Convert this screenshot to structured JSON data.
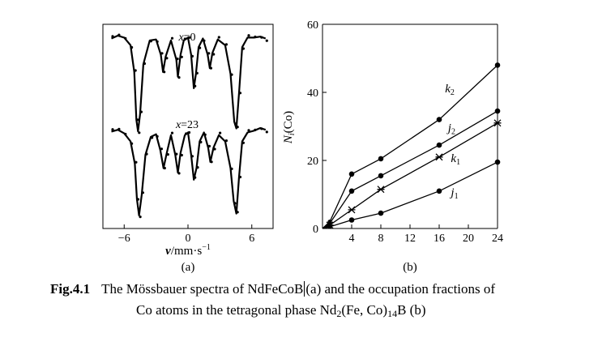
{
  "chart_data": [
    {
      "panel": "a",
      "type": "line",
      "panel_label": "(a)",
      "xlabel_main": "v",
      "xlabel_unit": "/mm·s",
      "xlabel_sup": "−1",
      "xlim": [
        -8,
        8
      ],
      "xticks": [
        -6,
        0,
        6
      ],
      "xtick_labels": [
        "−6",
        "0",
        "6"
      ],
      "series": [
        {
          "name": "x=0",
          "label_main": "x",
          "label_rest": "=0",
          "x": [
            -7.2,
            -6.6,
            -6.0,
            -5.4,
            -5.05,
            -4.85,
            -4.7,
            -4.5,
            -4.2,
            -3.6,
            -3.0,
            -2.55,
            -2.35,
            -2.1,
            -1.6,
            -1.1,
            -0.95,
            -0.7,
            -0.4,
            0.0,
            0.3,
            0.55,
            0.75,
            1.0,
            1.4,
            1.85,
            2.05,
            2.3,
            2.8,
            3.5,
            4.0,
            4.35,
            4.55,
            4.8,
            5.1,
            5.6,
            6.2,
            6.8,
            7.3
          ],
          "y": [
            0.97,
            1.0,
            0.98,
            0.9,
            0.62,
            0.12,
            0.0,
            0.18,
            0.7,
            0.95,
            0.96,
            0.8,
            0.62,
            0.78,
            0.95,
            0.75,
            0.57,
            0.8,
            0.95,
            0.98,
            0.8,
            0.45,
            0.6,
            0.88,
            0.97,
            0.8,
            0.66,
            0.82,
            0.96,
            0.9,
            0.6,
            0.1,
            0.03,
            0.4,
            0.88,
            0.98,
            0.98,
            0.99,
            0.97
          ]
        },
        {
          "name": "x=23",
          "label_main": "x",
          "label_rest": "=23",
          "x": [
            -7.2,
            -6.6,
            -6.0,
            -5.4,
            -5.0,
            -4.8,
            -4.6,
            -4.35,
            -4.0,
            -3.5,
            -3.0,
            -2.6,
            -2.3,
            -2.0,
            -1.6,
            -1.2,
            -0.95,
            -0.7,
            -0.3,
            0.0,
            0.3,
            0.55,
            0.8,
            1.1,
            1.5,
            1.9,
            2.1,
            2.4,
            2.9,
            3.5,
            4.0,
            4.3,
            4.55,
            4.8,
            5.1,
            5.6,
            6.2,
            6.8,
            7.3
          ],
          "y": [
            0.96,
            0.98,
            0.94,
            0.85,
            0.6,
            0.2,
            0.02,
            0.25,
            0.7,
            0.9,
            0.93,
            0.75,
            0.55,
            0.72,
            0.92,
            0.7,
            0.5,
            0.72,
            0.92,
            0.95,
            0.7,
            0.42,
            0.55,
            0.85,
            0.95,
            0.78,
            0.62,
            0.78,
            0.92,
            0.85,
            0.55,
            0.18,
            0.04,
            0.45,
            0.85,
            0.95,
            0.97,
            1.0,
            0.98
          ]
        }
      ]
    },
    {
      "panel": "b",
      "type": "line",
      "panel_label": "(b)",
      "ylabel_main": "N",
      "ylabel_sub": "i",
      "ylabel_rest": "(Co)",
      "xlim": [
        0,
        24
      ],
      "ylim": [
        0,
        60
      ],
      "xticks": [
        4,
        8,
        12,
        16,
        20,
        24
      ],
      "yticks": [
        0,
        20,
        40,
        60
      ],
      "series": [
        {
          "name": "k2",
          "label_main": "k",
          "label_sub": "2",
          "marker": "dot",
          "x": [
            0,
            1,
            4,
            8,
            16,
            24
          ],
          "y": [
            0,
            2,
            16,
            20.5,
            32,
            48
          ]
        },
        {
          "name": "j2",
          "label_main": "j",
          "label_sub": "2",
          "marker": "dot",
          "x": [
            0,
            1,
            4,
            8,
            16,
            24
          ],
          "y": [
            0,
            1.5,
            11,
            15.5,
            24.5,
            34.5
          ]
        },
        {
          "name": "k1",
          "label_main": "k",
          "label_sub": "1",
          "marker": "cross",
          "x": [
            0,
            1,
            4,
            8,
            16,
            24
          ],
          "y": [
            0,
            1,
            5.5,
            11.5,
            21,
            31
          ]
        },
        {
          "name": "j1",
          "label_main": "j",
          "label_sub": "1",
          "marker": "dot",
          "x": [
            0,
            1,
            4,
            8,
            16,
            24
          ],
          "y": [
            0,
            0.5,
            2.5,
            4.5,
            11,
            19.5
          ]
        }
      ]
    }
  ],
  "caption": {
    "fig_label": "Fig.4.1",
    "line1_text": "The Mössbauer spectra of NdFeCoB",
    "line1_tail": "(a) and the occupation fractions of",
    "line2_part1": "Co atoms in the tetragonal phase Nd",
    "line2_sub1": "2",
    "line2_part2": "(Fe, Co)",
    "line2_sub2": "14",
    "line2_part3": "B (b)"
  }
}
